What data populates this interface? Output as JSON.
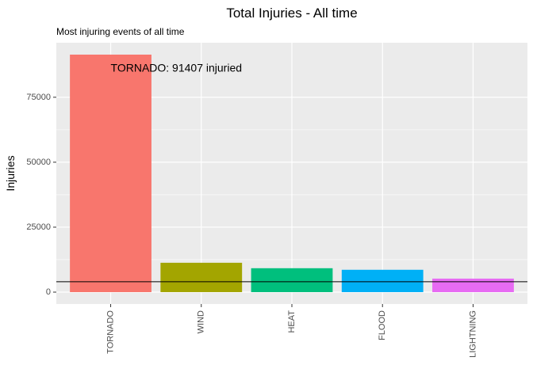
{
  "chart_data": {
    "type": "bar",
    "title": "Total Injuries - All time",
    "subtitle": "Most injuring events of all time",
    "xlabel": "",
    "ylabel": "Injuries",
    "categories": [
      "TORNADO",
      "WIND",
      "HEAT",
      "FLOOD",
      "LIGHTNING"
    ],
    "values": [
      91407,
      11300,
      9200,
      8600,
      5200
    ],
    "colors": [
      "#F8766D",
      "#A3A500",
      "#00BF7D",
      "#00B0F6",
      "#E76BF3"
    ],
    "ylim": [
      -4570,
      95977
    ],
    "yticks": [
      0,
      25000,
      50000,
      75000
    ],
    "ytick_labels": [
      "0",
      "25000",
      "50000",
      "75000"
    ],
    "reference_line": 4000,
    "annotation": {
      "text": "TORNADO: 91407 injuried",
      "x_category": "TORNADO",
      "y": 86000
    },
    "grid": true,
    "legend": "none",
    "panel_background": "#EBEBEB",
    "grid_color": "#FFFFFF"
  }
}
